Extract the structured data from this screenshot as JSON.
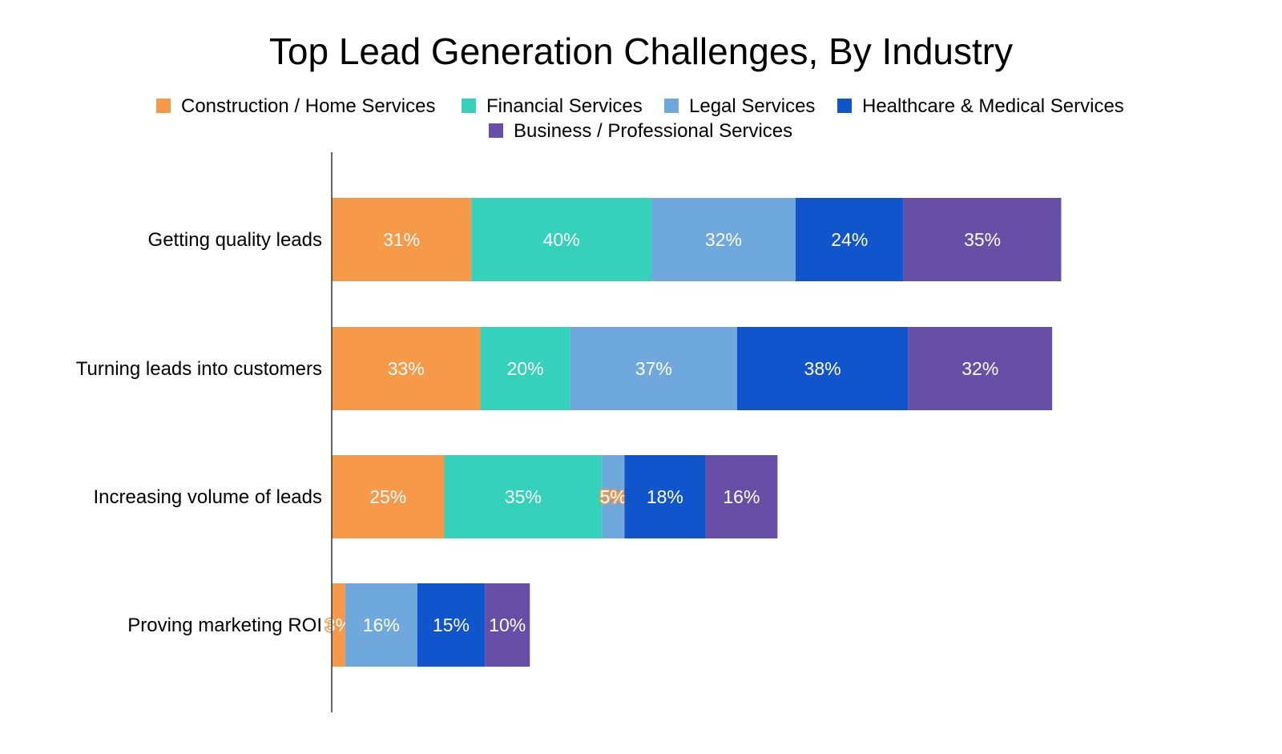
{
  "chart_data": {
    "type": "bar",
    "orientation": "horizontal",
    "stacked": true,
    "title": "Top Lead Generation Challenges, By Industry",
    "xlabel": "",
    "ylabel": "",
    "xlim": [
      0,
      165
    ],
    "grid": false,
    "legend_position": "top-center",
    "categories": [
      "Getting quality leads",
      "Turning leads into customers",
      "Increasing volume of leads",
      "Proving marketing ROI"
    ],
    "series": [
      {
        "name": "Construction / Home Services",
        "color": "#f69a4a",
        "values": [
          31,
          33,
          25,
          3
        ],
        "labels": [
          "31%",
          "33%",
          "25%",
          "3%"
        ]
      },
      {
        "name": "Financial Services",
        "color": "#36d1bb",
        "values": [
          40,
          20,
          35,
          0
        ],
        "labels": [
          "40%",
          "20%",
          "35%",
          ""
        ]
      },
      {
        "name": "Legal Services",
        "color": "#6fa8dc",
        "values": [
          32,
          37,
          5,
          16
        ],
        "labels": [
          "32%",
          "37%",
          "5%",
          "16%"
        ]
      },
      {
        "name": "Healthcare & Medical Services",
        "color": "#1155cc",
        "values": [
          24,
          38,
          18,
          15
        ],
        "labels": [
          "24%",
          "38%",
          "18%",
          "15%"
        ]
      },
      {
        "name": "Business / Professional Services",
        "color": "#674ea7",
        "values": [
          35,
          32,
          16,
          10
        ],
        "labels": [
          "35%",
          "32%",
          "16%",
          "10%"
        ]
      }
    ]
  }
}
